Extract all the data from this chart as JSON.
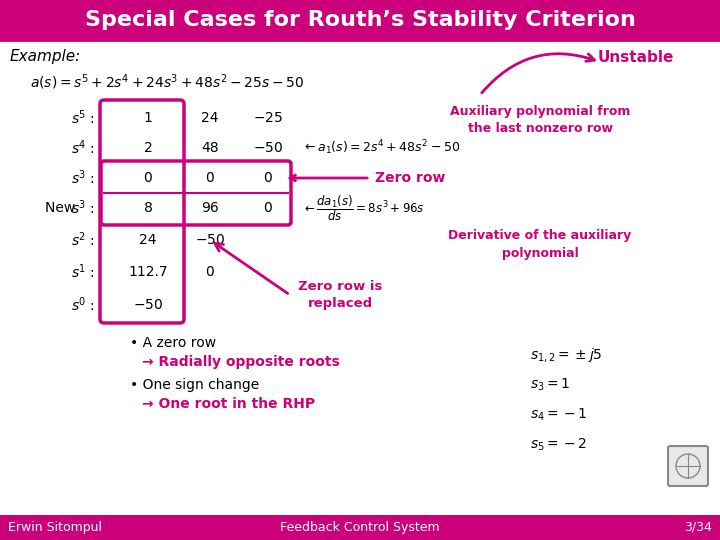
{
  "title": "Special Cases for Routh’s Stability Criterion",
  "title_bg": "#cc007a",
  "content_bg": "#ffffff",
  "footer_bg": "#cc007a",
  "title_color": "#ffffff",
  "text_color": "#000000",
  "magenta": "#cc007a",
  "yellow": "#ffff00",
  "footer_left": "Erwin Sitompul",
  "footer_center": "Feedback Control System",
  "footer_right": "3/34"
}
